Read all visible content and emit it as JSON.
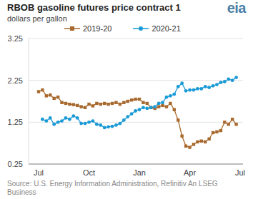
{
  "chart_data": {
    "type": "line",
    "title": "RBOB gasoline futures price contract 1",
    "subtitle": "dollars per gallon",
    "logo": "eia",
    "source": "Source: U.S. Energy Information Administration, Refinitiv An LSEG Business",
    "categories": [
      "Jul",
      null,
      null,
      null,
      null,
      null,
      null,
      null,
      null,
      null,
      null,
      null,
      null,
      "Oct",
      null,
      null,
      null,
      null,
      null,
      null,
      null,
      null,
      null,
      null,
      null,
      null,
      "Jan",
      null,
      null,
      null,
      null,
      null,
      null,
      null,
      null,
      null,
      null,
      null,
      null,
      "Apr",
      null,
      null,
      null,
      null,
      null,
      null,
      null,
      null,
      null,
      null,
      null,
      null,
      "Jul"
    ],
    "series": [
      {
        "name": "2019-20",
        "color": "#a8692e",
        "marker": "square",
        "values": [
          1.98,
          2.02,
          1.88,
          1.9,
          1.82,
          1.85,
          1.72,
          1.7,
          1.68,
          1.67,
          1.65,
          1.62,
          1.6,
          1.68,
          1.64,
          1.7,
          1.68,
          1.7,
          1.68,
          1.7,
          1.72,
          1.68,
          1.72,
          1.75,
          1.78,
          1.8,
          1.8,
          1.72,
          1.7,
          1.6,
          1.58,
          1.62,
          1.65,
          1.62,
          1.7,
          1.55,
          1.3,
          0.92,
          0.68,
          0.65,
          0.72,
          0.78,
          0.8,
          0.78,
          0.85,
          1.0,
          1.02,
          1.05,
          1.25,
          1.2,
          1.32,
          1.2,
          null
        ]
      },
      {
        "name": "2020-21",
        "color": "#1a9ad6",
        "marker": "circle",
        "values": [
          null,
          1.32,
          1.28,
          1.35,
          1.2,
          1.25,
          1.28,
          1.35,
          1.32,
          1.4,
          1.35,
          1.22,
          1.22,
          1.25,
          1.28,
          1.2,
          1.18,
          1.12,
          1.14,
          1.15,
          1.18,
          1.22,
          1.3,
          1.38,
          1.45,
          1.52,
          1.55,
          1.6,
          1.58,
          1.6,
          1.62,
          1.7,
          1.72,
          1.85,
          1.88,
          1.92,
          2.1,
          2.18,
          2.0,
          2.02,
          2.02,
          2.05,
          2.05,
          2.1,
          2.08,
          2.12,
          2.15,
          2.2,
          2.22,
          2.28,
          2.25,
          2.32,
          null
        ]
      }
    ],
    "ylim": [
      0.25,
      3.25
    ],
    "yticks": [
      0.25,
      1.25,
      2.25,
      3.25
    ],
    "grid": true,
    "legend": "top"
  }
}
